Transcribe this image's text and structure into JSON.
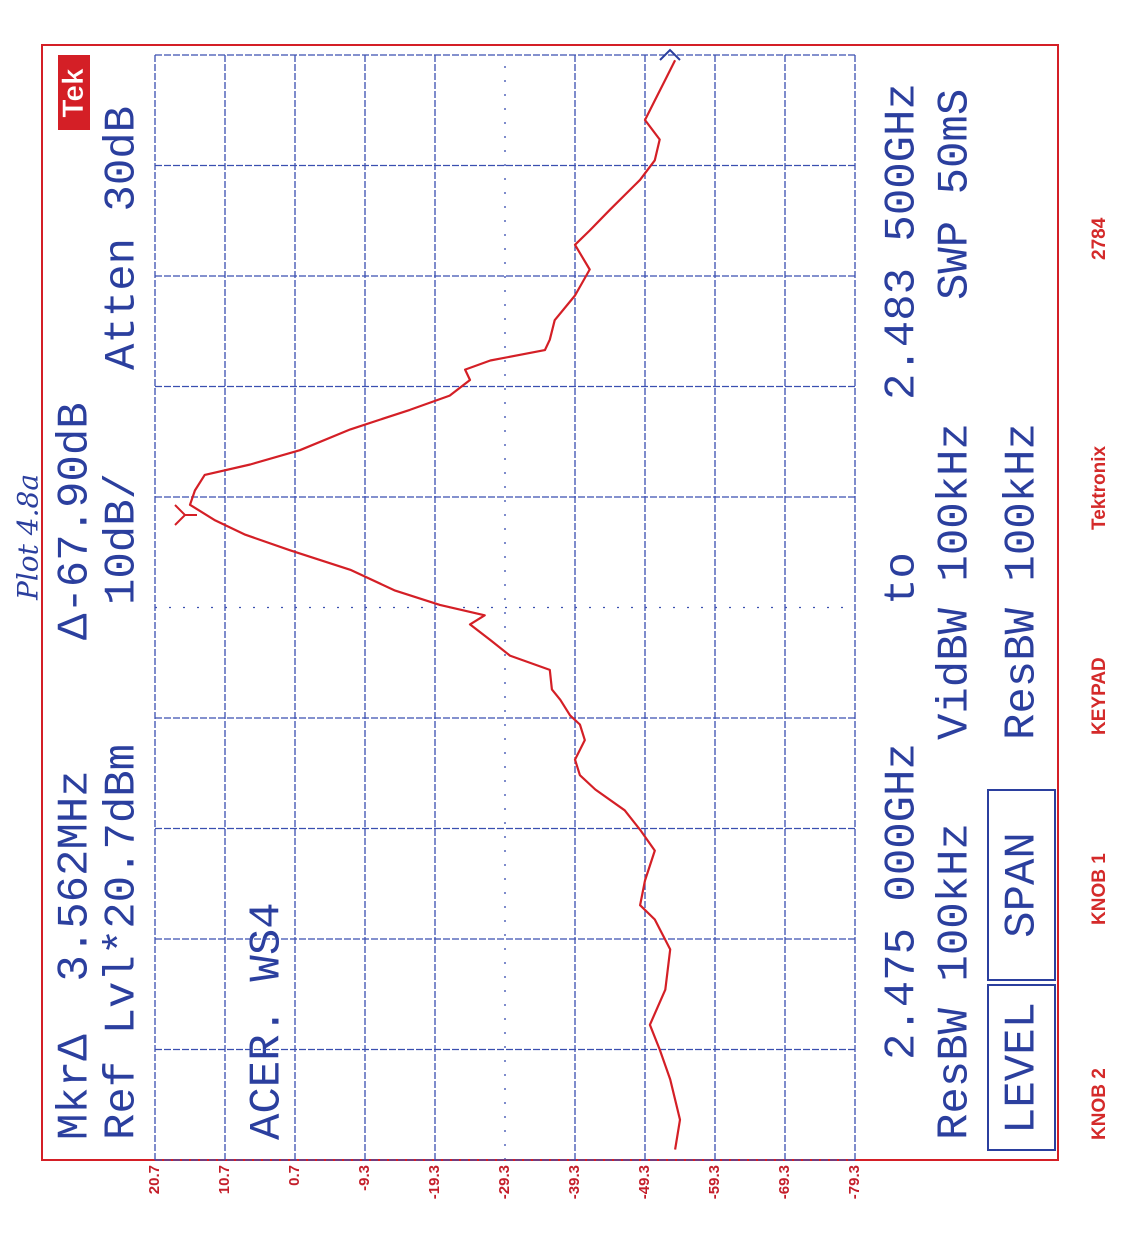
{
  "chart_data": {
    "type": "line",
    "title": "Plot 4.8a",
    "annotations": {
      "marker": "MkrΔ  3.562MHz",
      "ref_level": "Ref Lvl*20.7dBm",
      "label": "ACER. WS4",
      "delta": "Δ-67.90dB",
      "scale": "10dB/",
      "attenuation": "Atten 30dB",
      "start": "2.475 000GHz",
      "to": "to",
      "stop": "2.483 500GHz",
      "res_bw": "ResBW 100kHz",
      "vid_bw": "VidBW 100kHz",
      "sweep": "SWP 50mS",
      "res_bw_2": "ResBW 100kHz"
    },
    "buttons": [
      "LEVEL",
      "SPAN"
    ],
    "footer": [
      "KNOB 2",
      "KNOB 1",
      "KEYPAD",
      "Tektronix",
      "2784"
    ],
    "logo": "Tek",
    "color": "#d41f26",
    "x": [
      2.47508,
      2.47531,
      2.47562,
      2.47585,
      2.47604,
      2.47631,
      2.47662,
      2.47685,
      2.47696,
      2.47715,
      2.47738,
      2.47754,
      2.47769,
      2.47785,
      2.47796,
      2.47808,
      2.47823,
      2.47835,
      2.47842,
      2.47854,
      2.47862,
      2.47877,
      2.47888,
      2.479,
      2.47912,
      2.47919,
      2.47927,
      2.47938,
      2.47954,
      2.47969,
      2.47981,
      2.47992,
      2.48004,
      2.48015,
      2.48027,
      2.48035,
      2.48046,
      2.48062,
      2.48077,
      2.48088,
      2.481,
      2.48108,
      2.48115,
      2.48123,
      2.48131,
      2.48146,
      2.48165,
      2.48185,
      2.48204,
      2.48215,
      2.48231,
      2.48254,
      2.48269,
      2.48285,
      2.483,
      2.48315,
      2.48331,
      2.48346
    ],
    "values": [
      -53.6,
      -54.3,
      -52.9,
      -51.4,
      -50.0,
      -52.2,
      -52.9,
      -50.7,
      -48.6,
      -49.3,
      -50.7,
      -48.6,
      -46.4,
      -42.2,
      -40.0,
      -39.3,
      -40.7,
      -40.0,
      -38.6,
      -37.2,
      -36.0,
      -35.7,
      -30.0,
      -27.2,
      -24.3,
      -26.4,
      -20.0,
      -13.6,
      -7.2,
      1.4,
      7.8,
      12.1,
      15.7,
      15.0,
      13.6,
      7.1,
      0.0,
      -7.2,
      -15.7,
      -21.4,
      -24.3,
      -23.6,
      -27.2,
      -35.0,
      -35.7,
      -36.4,
      -39.3,
      -41.4,
      -39.3,
      -41.4,
      -44.3,
      -48.6,
      -50.7,
      -51.4,
      -49.3,
      -50.7,
      -52.2,
      -53.6
    ],
    "xlim": [
      2.475,
      2.4835
    ],
    "ylim": [
      -79.3,
      20.7
    ],
    "yticks": [
      20.7,
      10.7,
      0.7,
      -9.3,
      -19.3,
      -29.3,
      -39.3,
      -49.3,
      -59.3,
      -69.3,
      -79.3
    ],
    "grid": true
  }
}
